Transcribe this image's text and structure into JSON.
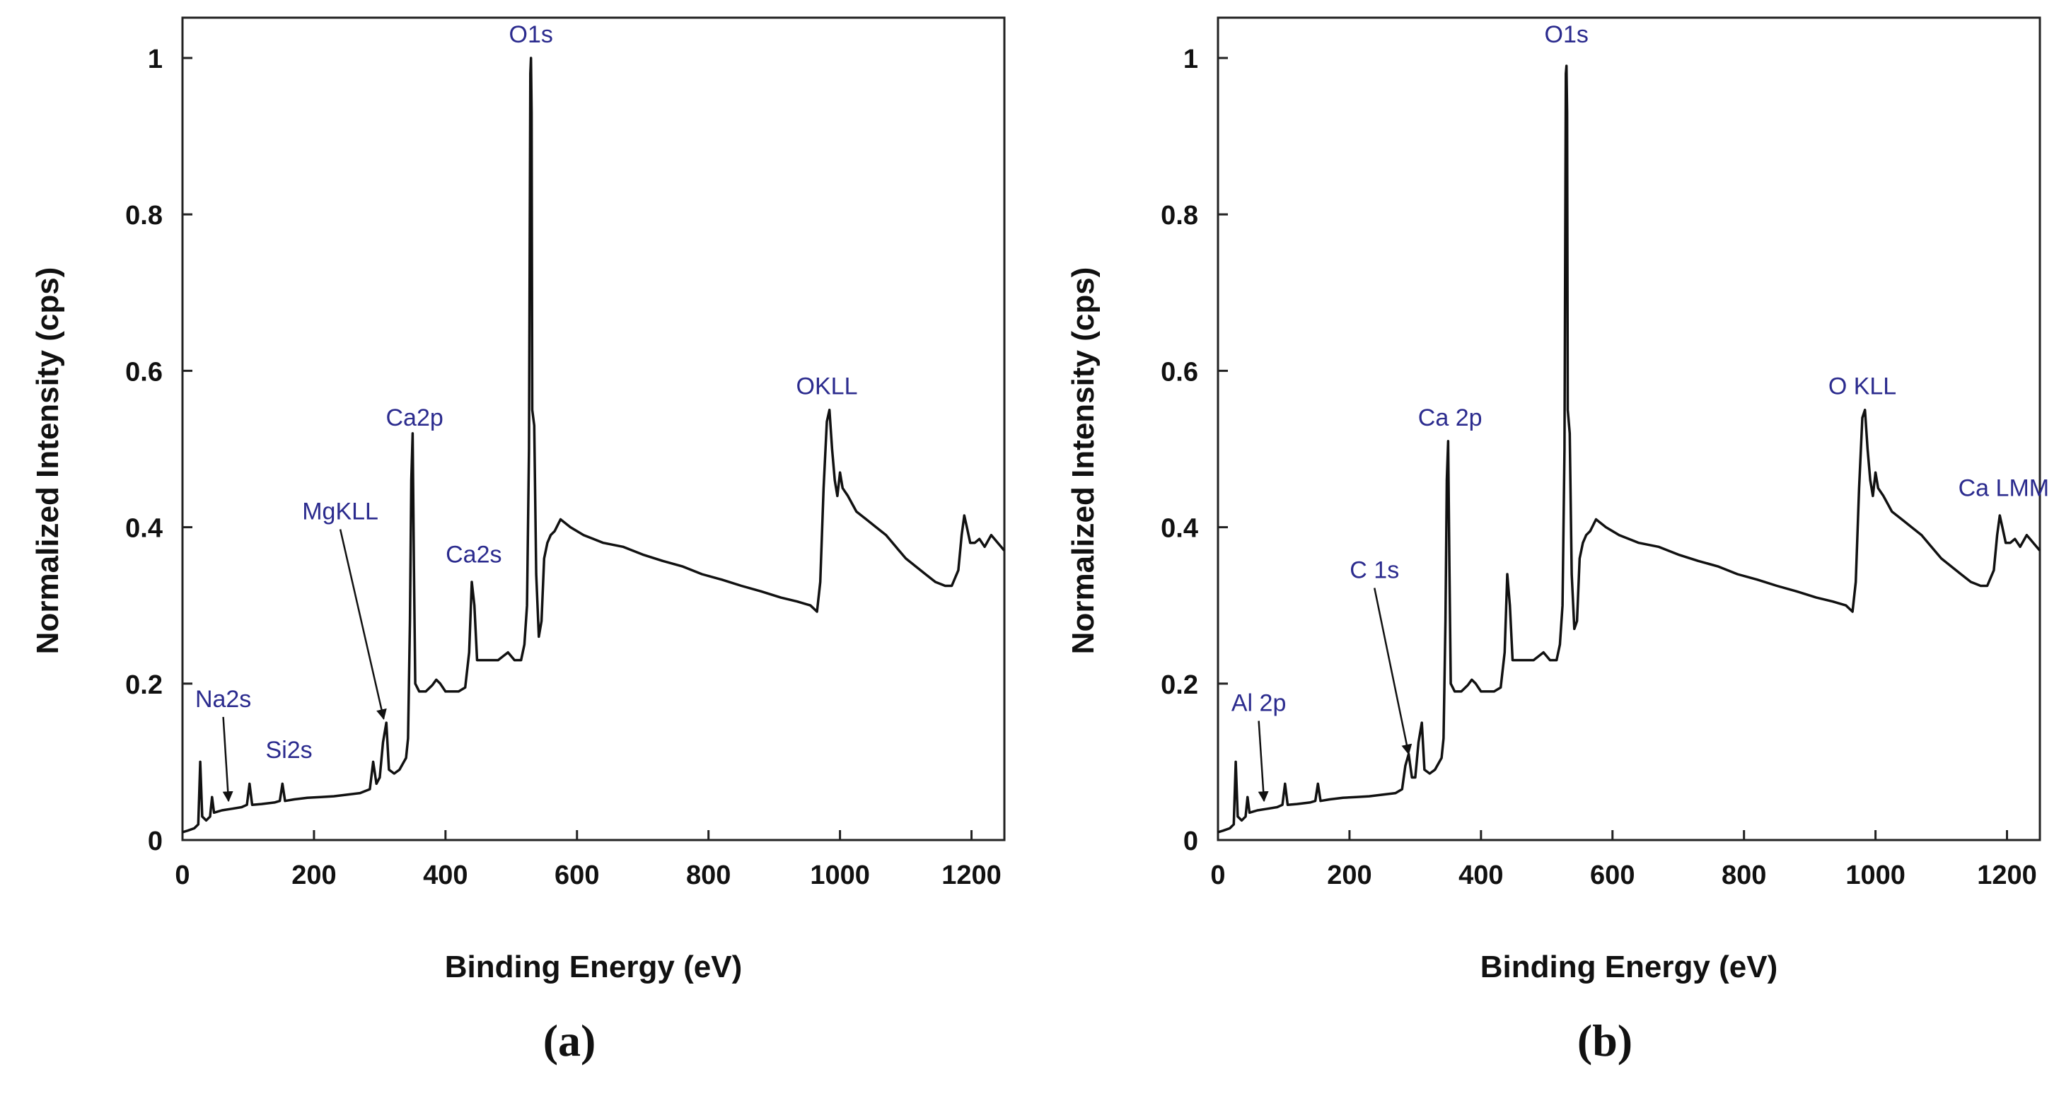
{
  "chart_data": [
    {
      "type": "line",
      "panel_label": "(a)",
      "xlabel": "Binding Energy (eV)",
      "ylabel": "Normalized Intensity (cps)",
      "xlim": [
        0,
        1250
      ],
      "ylim": [
        0,
        1.05
      ],
      "xticks": [
        0,
        200,
        400,
        600,
        800,
        1000,
        1200
      ],
      "yticks": [
        0,
        0.2,
        0.4,
        0.6,
        0.8,
        1
      ],
      "ytick_labels": [
        "0",
        "0.2",
        "0.4",
        "0.6",
        "0.8",
        "1"
      ],
      "color": "#111111",
      "spectrum": [
        [
          0,
          0.01
        ],
        [
          8,
          0.012
        ],
        [
          18,
          0.015
        ],
        [
          24,
          0.02
        ],
        [
          27,
          0.1
        ],
        [
          30,
          0.03
        ],
        [
          36,
          0.025
        ],
        [
          42,
          0.03
        ],
        [
          45,
          0.055
        ],
        [
          48,
          0.035
        ],
        [
          60,
          0.038
        ],
        [
          75,
          0.04
        ],
        [
          90,
          0.042
        ],
        [
          98,
          0.045
        ],
        [
          102,
          0.072
        ],
        [
          106,
          0.045
        ],
        [
          120,
          0.046
        ],
        [
          140,
          0.048
        ],
        [
          148,
          0.05
        ],
        [
          152,
          0.072
        ],
        [
          156,
          0.05
        ],
        [
          170,
          0.052
        ],
        [
          190,
          0.054
        ],
        [
          210,
          0.055
        ],
        [
          230,
          0.056
        ],
        [
          250,
          0.058
        ],
        [
          270,
          0.06
        ],
        [
          285,
          0.065
        ],
        [
          290,
          0.1
        ],
        [
          295,
          0.072
        ],
        [
          300,
          0.08
        ],
        [
          305,
          0.125
        ],
        [
          310,
          0.15
        ],
        [
          314,
          0.09
        ],
        [
          322,
          0.085
        ],
        [
          330,
          0.09
        ],
        [
          340,
          0.105
        ],
        [
          343,
          0.13
        ],
        [
          346,
          0.28
        ],
        [
          348,
          0.46
        ],
        [
          350,
          0.52
        ],
        [
          352,
          0.35
        ],
        [
          354,
          0.2
        ],
        [
          360,
          0.19
        ],
        [
          370,
          0.19
        ],
        [
          380,
          0.198
        ],
        [
          386,
          0.205
        ],
        [
          392,
          0.2
        ],
        [
          400,
          0.19
        ],
        [
          420,
          0.19
        ],
        [
          430,
          0.195
        ],
        [
          436,
          0.24
        ],
        [
          440,
          0.33
        ],
        [
          444,
          0.3
        ],
        [
          448,
          0.23
        ],
        [
          460,
          0.23
        ],
        [
          480,
          0.23
        ],
        [
          495,
          0.24
        ],
        [
          505,
          0.23
        ],
        [
          515,
          0.23
        ],
        [
          520,
          0.25
        ],
        [
          524,
          0.3
        ],
        [
          527,
          0.5
        ],
        [
          529,
          0.98
        ],
        [
          530,
          1.0
        ],
        [
          531,
          0.93
        ],
        [
          532,
          0.55
        ],
        [
          535,
          0.53
        ],
        [
          538,
          0.34
        ],
        [
          542,
          0.26
        ],
        [
          546,
          0.28
        ],
        [
          550,
          0.36
        ],
        [
          555,
          0.38
        ],
        [
          560,
          0.39
        ],
        [
          566,
          0.395
        ],
        [
          575,
          0.41
        ],
        [
          590,
          0.4
        ],
        [
          610,
          0.39
        ],
        [
          640,
          0.38
        ],
        [
          670,
          0.375
        ],
        [
          700,
          0.365
        ],
        [
          730,
          0.357
        ],
        [
          760,
          0.35
        ],
        [
          790,
          0.34
        ],
        [
          820,
          0.333
        ],
        [
          850,
          0.325
        ],
        [
          880,
          0.318
        ],
        [
          910,
          0.31
        ],
        [
          935,
          0.305
        ],
        [
          955,
          0.3
        ],
        [
          965,
          0.292
        ],
        [
          970,
          0.33
        ],
        [
          975,
          0.45
        ],
        [
          980,
          0.535
        ],
        [
          984,
          0.55
        ],
        [
          988,
          0.5
        ],
        [
          992,
          0.46
        ],
        [
          996,
          0.44
        ],
        [
          1000,
          0.47
        ],
        [
          1004,
          0.45
        ],
        [
          1012,
          0.44
        ],
        [
          1025,
          0.42
        ],
        [
          1040,
          0.41
        ],
        [
          1055,
          0.4
        ],
        [
          1070,
          0.39
        ],
        [
          1085,
          0.375
        ],
        [
          1100,
          0.36
        ],
        [
          1115,
          0.35
        ],
        [
          1130,
          0.34
        ],
        [
          1145,
          0.33
        ],
        [
          1160,
          0.325
        ],
        [
          1170,
          0.325
        ],
        [
          1180,
          0.345
        ],
        [
          1185,
          0.39
        ],
        [
          1189,
          0.415
        ],
        [
          1193,
          0.4
        ],
        [
          1198,
          0.38
        ],
        [
          1205,
          0.38
        ],
        [
          1212,
          0.385
        ],
        [
          1220,
          0.375
        ],
        [
          1230,
          0.39
        ],
        [
          1240,
          0.38
        ],
        [
          1250,
          0.37
        ]
      ],
      "annotations": [
        {
          "label": "O1s",
          "x": 530,
          "y": 1.02
        },
        {
          "label": "OKLL",
          "x": 980,
          "y": 0.57
        },
        {
          "label": "Ca2p",
          "x": 353,
          "y": 0.53
        },
        {
          "label": "Ca2s",
          "x": 443,
          "y": 0.355
        },
        {
          "label": "MgKLL",
          "x": 240,
          "y": 0.41,
          "arrow_to": [
            306,
            0.155
          ]
        },
        {
          "label": "Na2s",
          "x": 62,
          "y": 0.17,
          "arrow_to": [
            70,
            0.05
          ]
        },
        {
          "label": "Si2s",
          "x": 162,
          "y": 0.105
        }
      ]
    },
    {
      "type": "line",
      "panel_label": "(b)",
      "xlabel": "Binding Energy (eV)",
      "ylabel": "Normalized Intensity (cps)",
      "xlim": [
        0,
        1250
      ],
      "ylim": [
        0,
        1.05
      ],
      "xticks": [
        0,
        200,
        400,
        600,
        800,
        1000,
        1200
      ],
      "yticks": [
        0,
        0.2,
        0.4,
        0.6,
        0.8,
        1
      ],
      "ytick_labels": [
        "0",
        "0.2",
        "0.4",
        "0.6",
        "0.8",
        "1"
      ],
      "color": "#111111",
      "spectrum": [
        [
          0,
          0.01
        ],
        [
          8,
          0.012
        ],
        [
          18,
          0.015
        ],
        [
          24,
          0.02
        ],
        [
          27,
          0.1
        ],
        [
          30,
          0.03
        ],
        [
          36,
          0.025
        ],
        [
          42,
          0.03
        ],
        [
          45,
          0.055
        ],
        [
          48,
          0.035
        ],
        [
          60,
          0.038
        ],
        [
          75,
          0.04
        ],
        [
          90,
          0.042
        ],
        [
          98,
          0.045
        ],
        [
          102,
          0.072
        ],
        [
          106,
          0.045
        ],
        [
          120,
          0.046
        ],
        [
          140,
          0.048
        ],
        [
          148,
          0.05
        ],
        [
          152,
          0.072
        ],
        [
          156,
          0.05
        ],
        [
          170,
          0.052
        ],
        [
          190,
          0.054
        ],
        [
          210,
          0.055
        ],
        [
          230,
          0.056
        ],
        [
          250,
          0.058
        ],
        [
          270,
          0.06
        ],
        [
          280,
          0.065
        ],
        [
          285,
          0.095
        ],
        [
          290,
          0.11
        ],
        [
          295,
          0.08
        ],
        [
          300,
          0.08
        ],
        [
          305,
          0.125
        ],
        [
          310,
          0.15
        ],
        [
          314,
          0.09
        ],
        [
          322,
          0.085
        ],
        [
          330,
          0.09
        ],
        [
          340,
          0.105
        ],
        [
          343,
          0.13
        ],
        [
          346,
          0.28
        ],
        [
          348,
          0.46
        ],
        [
          350,
          0.51
        ],
        [
          352,
          0.35
        ],
        [
          354,
          0.2
        ],
        [
          360,
          0.19
        ],
        [
          370,
          0.19
        ],
        [
          380,
          0.198
        ],
        [
          386,
          0.205
        ],
        [
          392,
          0.2
        ],
        [
          400,
          0.19
        ],
        [
          420,
          0.19
        ],
        [
          430,
          0.195
        ],
        [
          436,
          0.24
        ],
        [
          440,
          0.34
        ],
        [
          444,
          0.3
        ],
        [
          448,
          0.23
        ],
        [
          460,
          0.23
        ],
        [
          480,
          0.23
        ],
        [
          495,
          0.24
        ],
        [
          505,
          0.23
        ],
        [
          515,
          0.23
        ],
        [
          520,
          0.25
        ],
        [
          524,
          0.3
        ],
        [
          527,
          0.5
        ],
        [
          529,
          0.98
        ],
        [
          530,
          0.99
        ],
        [
          531,
          0.93
        ],
        [
          532,
          0.55
        ],
        [
          535,
          0.52
        ],
        [
          538,
          0.34
        ],
        [
          542,
          0.27
        ],
        [
          546,
          0.28
        ],
        [
          550,
          0.36
        ],
        [
          555,
          0.38
        ],
        [
          560,
          0.39
        ],
        [
          566,
          0.395
        ],
        [
          575,
          0.41
        ],
        [
          590,
          0.4
        ],
        [
          610,
          0.39
        ],
        [
          640,
          0.38
        ],
        [
          670,
          0.375
        ],
        [
          700,
          0.365
        ],
        [
          730,
          0.357
        ],
        [
          760,
          0.35
        ],
        [
          790,
          0.34
        ],
        [
          820,
          0.333
        ],
        [
          850,
          0.325
        ],
        [
          880,
          0.318
        ],
        [
          910,
          0.31
        ],
        [
          935,
          0.305
        ],
        [
          955,
          0.3
        ],
        [
          965,
          0.292
        ],
        [
          970,
          0.33
        ],
        [
          975,
          0.45
        ],
        [
          980,
          0.54
        ],
        [
          984,
          0.55
        ],
        [
          988,
          0.5
        ],
        [
          992,
          0.46
        ],
        [
          996,
          0.44
        ],
        [
          1000,
          0.47
        ],
        [
          1004,
          0.45
        ],
        [
          1012,
          0.44
        ],
        [
          1025,
          0.42
        ],
        [
          1040,
          0.41
        ],
        [
          1055,
          0.4
        ],
        [
          1070,
          0.39
        ],
        [
          1085,
          0.375
        ],
        [
          1100,
          0.36
        ],
        [
          1115,
          0.35
        ],
        [
          1130,
          0.34
        ],
        [
          1145,
          0.33
        ],
        [
          1160,
          0.325
        ],
        [
          1170,
          0.325
        ],
        [
          1180,
          0.345
        ],
        [
          1185,
          0.39
        ],
        [
          1189,
          0.415
        ],
        [
          1193,
          0.4
        ],
        [
          1198,
          0.38
        ],
        [
          1205,
          0.38
        ],
        [
          1212,
          0.385
        ],
        [
          1220,
          0.375
        ],
        [
          1230,
          0.39
        ],
        [
          1240,
          0.38
        ],
        [
          1250,
          0.37
        ]
      ],
      "annotations": [
        {
          "label": "O1s",
          "x": 530,
          "y": 1.02
        },
        {
          "label": "O KLL",
          "x": 980,
          "y": 0.57
        },
        {
          "label": "Ca 2p",
          "x": 353,
          "y": 0.53
        },
        {
          "label": "Ca LMM",
          "x": 1195,
          "y": 0.44
        },
        {
          "label": "C 1s",
          "x": 238,
          "y": 0.335,
          "arrow_to": [
            290,
            0.11
          ]
        },
        {
          "label": "Al 2p",
          "x": 62,
          "y": 0.165,
          "arrow_to": [
            70,
            0.05
          ]
        }
      ]
    }
  ]
}
